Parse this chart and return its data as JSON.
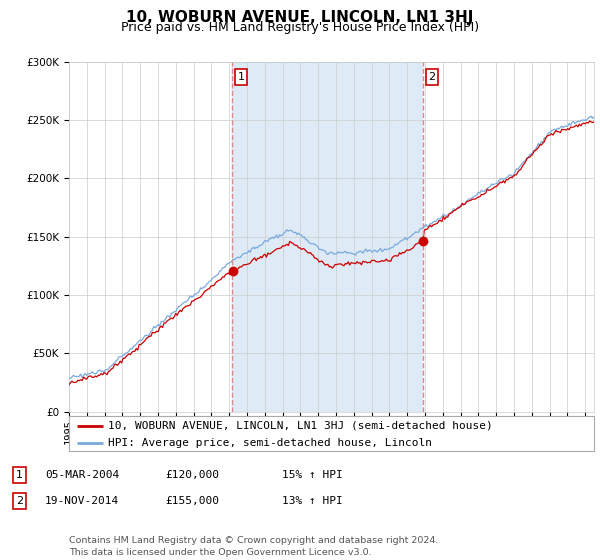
{
  "title": "10, WOBURN AVENUE, LINCOLN, LN1 3HJ",
  "subtitle": "Price paid vs. HM Land Registry's House Price Index (HPI)",
  "footer": "Contains HM Land Registry data © Crown copyright and database right 2024.\nThis data is licensed under the Open Government Licence v3.0.",
  "legend_line1": "10, WOBURN AVENUE, LINCOLN, LN1 3HJ (semi-detached house)",
  "legend_line2": "HPI: Average price, semi-detached house, Lincoln",
  "transaction1_label": "1",
  "transaction1_date": "05-MAR-2004",
  "transaction1_price": "£120,000",
  "transaction1_hpi": "15% ↑ HPI",
  "transaction2_label": "2",
  "transaction2_date": "19-NOV-2014",
  "transaction2_price": "£155,000",
  "transaction2_hpi": "13% ↑ HPI",
  "vline1_x": 2004.17,
  "vline2_x": 2014.89,
  "marker1_y": 120000,
  "marker2_y": 155000,
  "ylim": [
    0,
    300000
  ],
  "xlim_start": 1995,
  "xlim_end": 2024.5,
  "line_color_red": "#cc0000",
  "line_color_blue": "#7aaadd",
  "fill_color_blue": "#deeaf5",
  "vline_color": "#dd8888",
  "grid_color": "#cccccc",
  "bg_color": "#ffffff",
  "title_fontsize": 11,
  "subtitle_fontsize": 9,
  "tick_fontsize": 7.5,
  "legend_fontsize": 8,
  "footer_fontsize": 6.8
}
